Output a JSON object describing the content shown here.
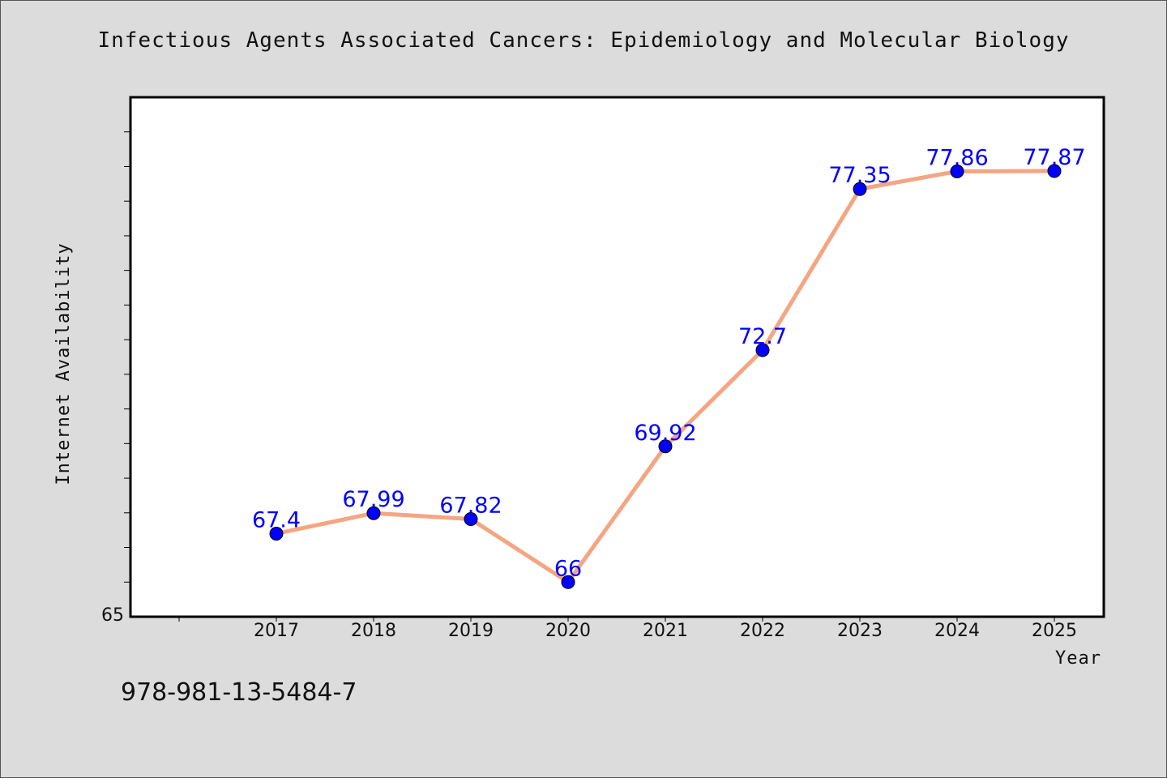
{
  "chart_data": {
    "type": "line",
    "title": "Infectious Agents Associated Cancers: Epidemiology and Molecular Biology",
    "xlabel": "Year",
    "ylabel": "Internet Availability",
    "categories": [
      "2017",
      "2018",
      "2019",
      "2020",
      "2021",
      "2022",
      "2023",
      "2024",
      "2025"
    ],
    "series": [
      {
        "values": [
          67.4,
          67.99,
          67.82,
          66,
          69.92,
          72.7,
          77.35,
          77.86,
          77.87
        ]
      }
    ],
    "data_labels": [
      "67.4",
      "67.99",
      "67.82",
      "66",
      "69.92",
      "72.7",
      "77.35",
      "77.86",
      "77.87"
    ],
    "ylim": [
      65,
      80
    ],
    "y_tick_labels": [
      "65"
    ],
    "y_minor_step": 1,
    "grid": false,
    "colors": {
      "line": "#f4a582",
      "marker": "#0000ff",
      "label": "#0000ff",
      "background": "#dcdcdc",
      "plot_bg": "#ffffff"
    }
  },
  "footer": {
    "isbn": "978-981-13-5484-7"
  }
}
